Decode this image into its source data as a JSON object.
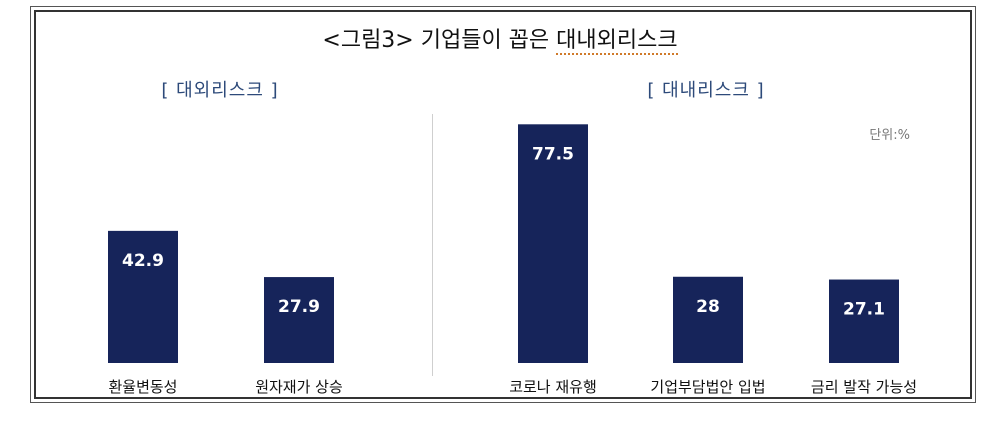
{
  "header": {
    "title_prefix": "<그림3> 기업들이 꼽은 ",
    "title_highlight": "대내외리스크"
  },
  "unit_label": "단위:%",
  "chart_data": [
    {
      "type": "bar",
      "title": "[ 대외리스크 ]",
      "categories": [
        "환율변동성",
        "원자재가 상승"
      ],
      "values": [
        42.9,
        27.9
      ],
      "ylim": [
        0,
        80
      ],
      "grid": false,
      "color": "#16245a"
    },
    {
      "type": "bar",
      "title": "[ 대내리스크 ]",
      "categories": [
        "코로나 재유행",
        "기업부담법안 입법",
        "금리 발작 가능성"
      ],
      "values": [
        77.5,
        28,
        27.1
      ],
      "ylim": [
        0,
        80
      ],
      "grid": false,
      "color": "#16245a"
    }
  ]
}
